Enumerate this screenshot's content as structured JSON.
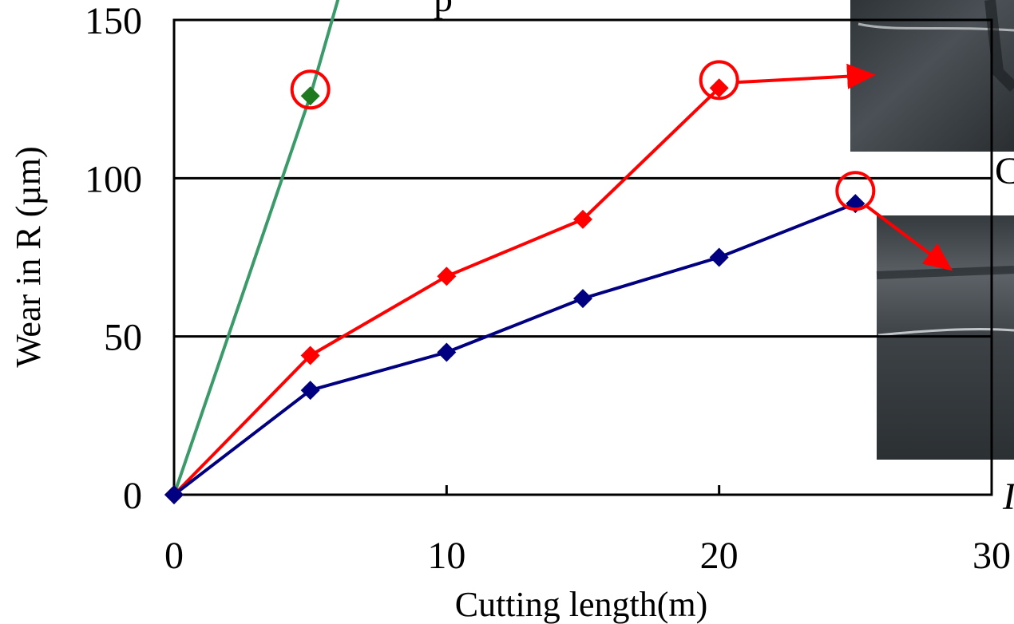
{
  "chart_data": {
    "type": "line",
    "xlabel": "Cutting length(m)",
    "ylabel": "Wear in R (µm)",
    "xlim": [
      0,
      30
    ],
    "ylim": [
      0,
      150
    ],
    "x_ticks": [
      "0",
      "10",
      "20",
      "30"
    ],
    "y_ticks": [
      "0",
      "50",
      "100",
      "150"
    ],
    "grid": "horizontal",
    "series": [
      {
        "color": "#3a9a6a",
        "marker_color": "#1f7a1f",
        "points": [
          {
            "x": 0,
            "y": 0
          },
          {
            "x": 5,
            "y": 126
          },
          {
            "x": 6.3,
            "y": 165
          }
        ]
      },
      {
        "color": "#ff0000",
        "marker_color": "#ff0000",
        "points": [
          {
            "x": 0,
            "y": 0
          },
          {
            "x": 5,
            "y": 44
          },
          {
            "x": 10,
            "y": 69
          },
          {
            "x": 15,
            "y": 87
          },
          {
            "x": 20,
            "y": 128.5
          }
        ]
      },
      {
        "color": "#000080",
        "marker_color": "#000080",
        "points": [
          {
            "x": 0,
            "y": 0
          },
          {
            "x": 5,
            "y": 33
          },
          {
            "x": 10,
            "y": 45
          },
          {
            "x": 15,
            "y": 62
          },
          {
            "x": 20,
            "y": 75
          },
          {
            "x": 25,
            "y": 92
          }
        ]
      }
    ],
    "failure_circles": [
      {
        "x": 5,
        "y": 128
      },
      {
        "x": 20,
        "y": 131
      },
      {
        "x": 25,
        "y": 96
      }
    ],
    "annotation_partial_labels": [
      "p",
      "C",
      "I"
    ],
    "annotation_partial_label_color_third": "#4444cc",
    "photo_insets": 2,
    "colors": {
      "axis": "#000000",
      "grid": "#000000",
      "circle": "#ff0000",
      "arrow": "#ff0000",
      "photo": "#3a3f44"
    }
  }
}
